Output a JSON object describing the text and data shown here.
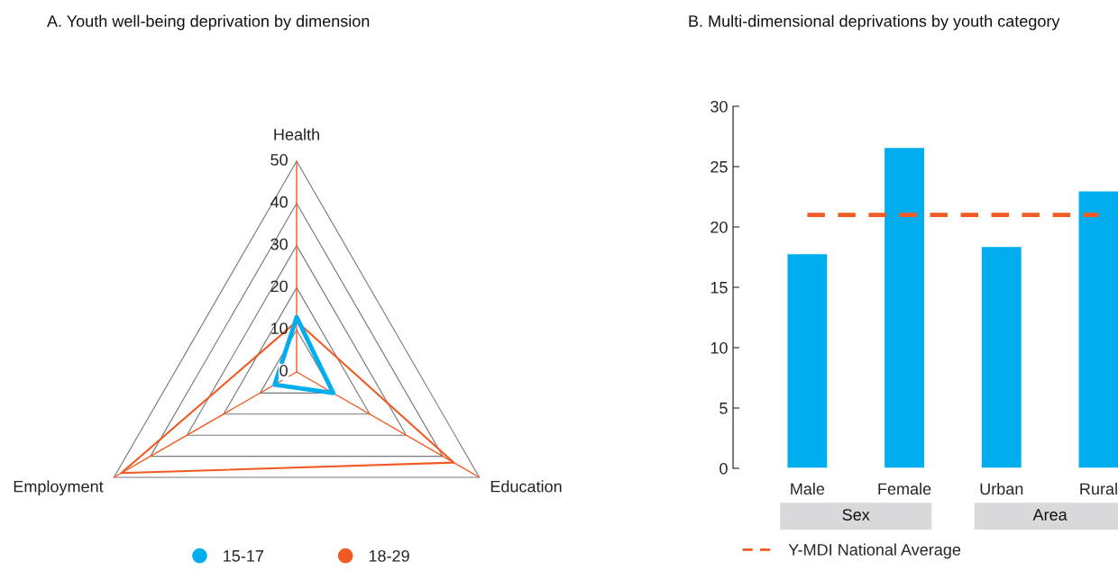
{
  "chart_data": [
    {
      "type": "radar",
      "title": "A. Youth well-being deprivation by dimension",
      "categories": [
        "Health",
        "Education",
        "Employment"
      ],
      "series": [
        {
          "name": "15-17",
          "color": "#00aeef",
          "values": [
            13,
            10,
            6
          ]
        },
        {
          "name": "18-29",
          "color": "#f15a22",
          "values": [
            12,
            43,
            48
          ]
        }
      ],
      "ylim": [
        0,
        50
      ],
      "yticks": [
        0,
        10,
        20,
        30,
        40,
        50
      ],
      "legend": "bottom"
    },
    {
      "type": "bar",
      "title": "B. Multi-dimensional deprivations by youth category",
      "categories": [
        "Male",
        "Female",
        "Urban",
        "Rural"
      ],
      "values": [
        17.8,
        26.6,
        18.4,
        23.0
      ],
      "color": "#00aeef",
      "ylim": [
        0,
        30
      ],
      "yticks": [
        0,
        5,
        10,
        15,
        20,
        25,
        30
      ],
      "ref_lines": [
        {
          "axis": "y",
          "value": 21,
          "label": "Y-MDI National Average",
          "color": "#f15a22",
          "line_style": "dashed"
        }
      ],
      "annotations": [
        "Sex",
        "Area"
      ],
      "legend": "bottom left"
    }
  ]
}
